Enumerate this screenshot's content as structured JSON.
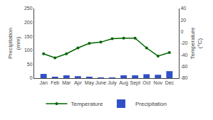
{
  "chart_data": {
    "type": "bar",
    "categories": [
      "Jan",
      "Feb",
      "Mar",
      "Apr",
      "May",
      "June",
      "July",
      "Aug",
      "Sept",
      "Oct",
      "Nov",
      "Dec"
    ],
    "series": [
      {
        "name": "Temperature",
        "type": "line",
        "axis": "y2",
        "color": "#006400",
        "marker": "circle",
        "values": [
          -38,
          -45,
          -38,
          -28,
          -20,
          -18,
          -12,
          -11,
          -11,
          -28,
          -42,
          -36
        ]
      },
      {
        "name": "Precipitation",
        "type": "bar",
        "color": "#3050C8",
        "values": [
          15,
          5,
          10,
          7,
          4,
          2,
          2,
          10,
          10,
          14,
          12,
          25
        ]
      }
    ],
    "y_label": "Precipitation\n(mm)",
    "y2_label": "Temperature\n(°C)",
    "ylim": [
      0,
      250
    ],
    "yticks": [
      0,
      50,
      100,
      150,
      200,
      250
    ],
    "y2lim": [
      -80,
      40
    ],
    "y2ticks": [
      -80,
      -60,
      -40,
      -20,
      0,
      20,
      40
    ],
    "grid": false,
    "legend": "bottom"
  }
}
